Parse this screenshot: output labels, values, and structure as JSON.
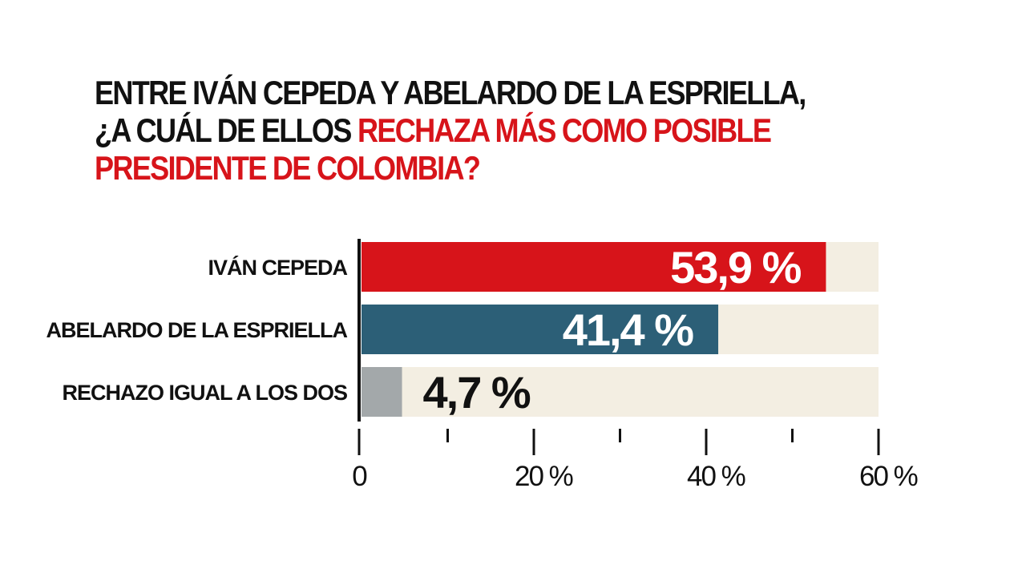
{
  "title": {
    "line1": "ENTRE IVÁN CEPEDA Y ABELARDO DE LA ESPRIELLA,",
    "line2_plain": "¿A CUÁL DE ELLOS ",
    "line2_highlight": "RECHAZA MÁS COMO POSIBLE",
    "line3_highlight": "PRESIDENTE DE COLOMBIA?"
  },
  "chart_data": {
    "type": "bar",
    "orientation": "horizontal",
    "categories": [
      "IVÁN CEPEDA",
      "ABELARDO DE LA ESPRIELLA",
      "RECHAZO IGUAL A LOS  DOS"
    ],
    "values": [
      53.9,
      41.4,
      4.7
    ],
    "value_labels": [
      "53,9 %",
      "41,4 %",
      "4,7 %"
    ],
    "xlim": [
      0,
      60
    ],
    "x_tick_labels": [
      "0",
      "20 %",
      "40 %",
      "60 %"
    ],
    "grid": false,
    "legend": "none"
  },
  "colors": {
    "bars": [
      "#d7141a",
      "#2c5f77",
      "#a3a8aa"
    ],
    "track": "#f3eee2",
    "highlight": "#d7141a",
    "text": "#111111",
    "value_text_inside": "#ffffff",
    "value_text_outside": "#111111"
  }
}
